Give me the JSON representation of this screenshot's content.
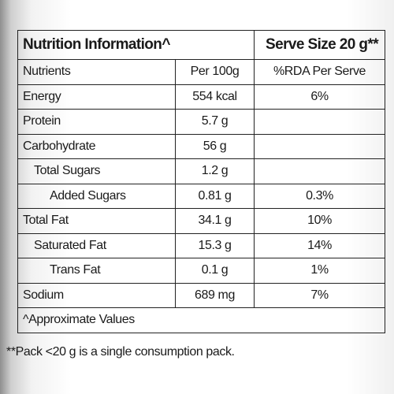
{
  "header": {
    "title": "Nutrition Information^",
    "serve_size": "Serve Size 20 g**"
  },
  "table": {
    "columns": [
      "Nutrients",
      "Per 100g",
      "%RDA Per Serve"
    ],
    "rows": [
      [
        "Energy",
        "554 kcal",
        "6%"
      ],
      [
        "Protein",
        "5.7 g"
      ],
      [
        "Carbohydrate",
        "56 g"
      ],
      [
        "Total Sugars",
        "1.2 g"
      ],
      [
        "Added Sugars",
        "0.81 g",
        "0.3%"
      ],
      [
        "Total Fat",
        "34.1 g",
        "10%"
      ],
      [
        "Saturated Fat",
        "15.3 g",
        "14%"
      ],
      [
        "Trans Fat",
        "0.1 g",
        "1%"
      ],
      [
        "Sodium",
        "689 mg",
        "7%"
      ]
    ],
    "note": "^Approximate Values"
  },
  "footnote": "**Pack <20 g is a single consumption pack."
}
